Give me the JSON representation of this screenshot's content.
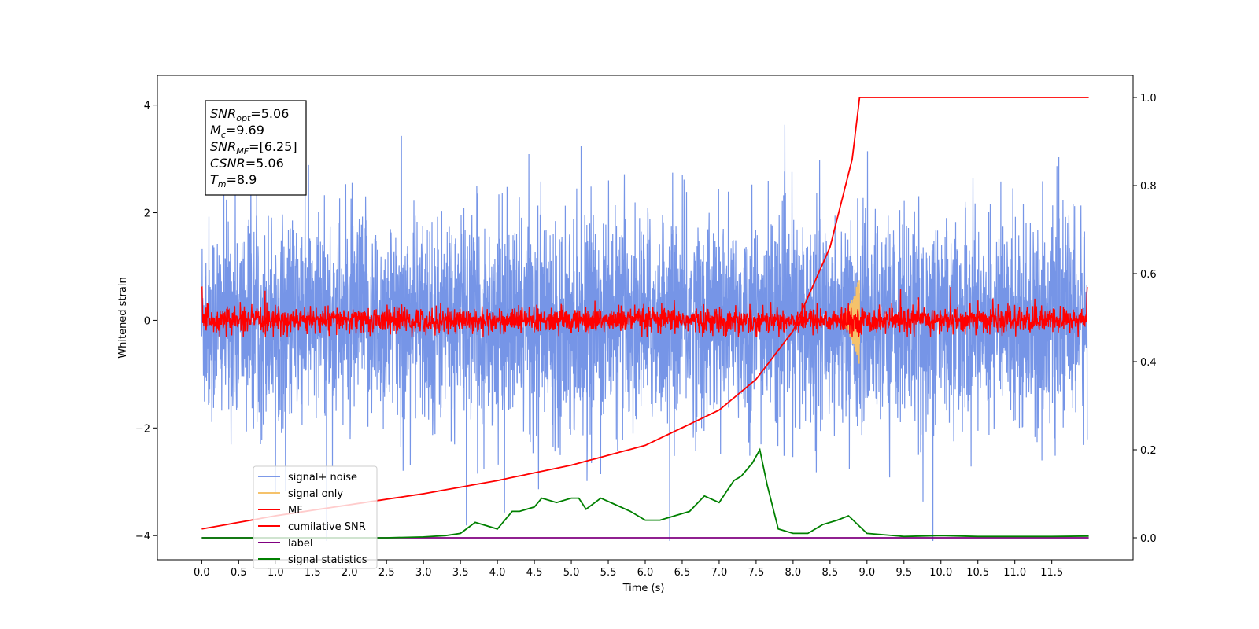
{
  "chart_data": {
    "type": "line",
    "xlabel": "Time (s)",
    "ylabel": "Whitened strain",
    "xlim": [
      -0.6,
      12.6
    ],
    "ylim_left": [
      -4.45,
      4.55
    ],
    "ylim_right": [
      -0.05,
      1.05
    ],
    "x_ticks": [
      0.0,
      0.5,
      1.0,
      1.5,
      2.0,
      2.5,
      3.0,
      3.5,
      4.0,
      4.5,
      5.0,
      5.5,
      6.0,
      6.5,
      7.0,
      7.5,
      8.0,
      8.5,
      9.0,
      9.5,
      10.0,
      10.5,
      11.0,
      11.5
    ],
    "x_tick_labels": [
      "0.0",
      "0.5",
      "1.0",
      "1.5",
      "2.0",
      "2.5",
      "3.0",
      "3.5",
      "4.0",
      "4.5",
      "5.0",
      "5.5",
      "6.0",
      "6.5",
      "7.0",
      "7.5",
      "8.0",
      "8.5",
      "9.0",
      "9.5",
      "10.0",
      "10.5",
      "11.0",
      "11.5"
    ],
    "y_left_ticks": [
      -4,
      -2,
      0,
      2,
      4
    ],
    "y_left_tick_labels": [
      "−4",
      "−2",
      "0",
      "2",
      "4"
    ],
    "y_right_ticks": [
      0.0,
      0.2,
      0.4,
      0.6,
      0.8,
      1.0
    ],
    "y_right_tick_labels": [
      "0.0",
      "0.2",
      "0.4",
      "0.6",
      "0.8",
      "1.0"
    ],
    "grid": false,
    "legend_position": "lower-left",
    "series": [
      {
        "name": "signal+ noise",
        "axis": "left",
        "color": "#6f8fe6",
        "description": "whitened noisy strain, roughly ±2.5 spread around 0 over 0–12 s"
      },
      {
        "name": "signal only",
        "axis": "left",
        "color": "#f5c26b",
        "peak_time": 8.9,
        "peak_amplitude": 0.85
      },
      {
        "name": "MF",
        "axis": "left",
        "color": "#ff0000",
        "description": "matched-filter output, amplitude about ±0.3 around 0"
      },
      {
        "name": "cumilative SNR",
        "axis": "right",
        "color": "#ff0000",
        "x": [
          0.0,
          1.0,
          2.0,
          3.0,
          4.0,
          5.0,
          6.0,
          7.0,
          7.5,
          8.0,
          8.5,
          8.8,
          8.9,
          12.0
        ],
        "y": [
          0.02,
          0.05,
          0.075,
          0.1,
          0.13,
          0.165,
          0.21,
          0.29,
          0.36,
          0.47,
          0.66,
          0.86,
          1.0,
          1.0
        ]
      },
      {
        "name": "label",
        "axis": "right",
        "color": "#800080",
        "x": [
          0.0,
          12.0
        ],
        "y": [
          0.0,
          0.0
        ]
      },
      {
        "name": "signal statistics",
        "axis": "right",
        "color": "#008000",
        "x": [
          0.0,
          0.5,
          1.0,
          1.5,
          2.0,
          2.5,
          3.0,
          3.3,
          3.5,
          3.7,
          4.0,
          4.2,
          4.3,
          4.5,
          4.6,
          4.8,
          5.0,
          5.1,
          5.2,
          5.4,
          5.6,
          5.8,
          6.0,
          6.2,
          6.4,
          6.6,
          6.8,
          7.0,
          7.2,
          7.3,
          7.45,
          7.55,
          7.65,
          7.8,
          8.0,
          8.2,
          8.4,
          8.6,
          8.75,
          9.0,
          9.5,
          10.0,
          10.5,
          11.0,
          11.5,
          12.0
        ],
        "y": [
          0.0,
          0.0,
          0.0,
          0.0,
          0.0,
          0.0,
          0.002,
          0.005,
          0.01,
          0.035,
          0.02,
          0.06,
          0.06,
          0.07,
          0.09,
          0.08,
          0.09,
          0.09,
          0.065,
          0.09,
          0.075,
          0.06,
          0.04,
          0.04,
          0.05,
          0.06,
          0.095,
          0.08,
          0.13,
          0.14,
          0.17,
          0.2,
          0.12,
          0.02,
          0.01,
          0.01,
          0.03,
          0.04,
          0.05,
          0.01,
          0.003,
          0.005,
          0.003,
          0.003,
          0.003,
          0.004
        ]
      }
    ],
    "annotation": {
      "lines": [
        {
          "sym": "SNR",
          "sub": "opt",
          "value": "=5.06"
        },
        {
          "sym": "M",
          "sub": "c",
          "value": "=9.69"
        },
        {
          "sym": "SNR",
          "sub": "MF",
          "value": "=[6.25]"
        },
        {
          "sym": "CSNR",
          "sub": "",
          "value": "=5.06"
        },
        {
          "sym": "T",
          "sub": "m",
          "value": "=8.9"
        }
      ]
    }
  }
}
